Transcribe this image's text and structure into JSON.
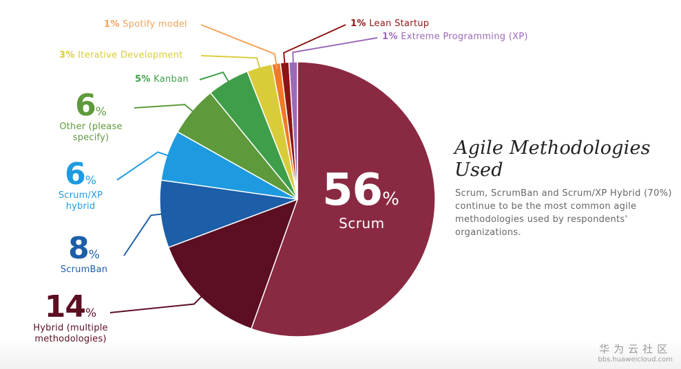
{
  "chart_data": {
    "type": "pie",
    "title": "Agile Methodologies Used",
    "subtitle": "Scrum, ScrumBan and Scrum/XP Hybrid (70%) continue to be the most common agile methodologies used by respondents' organizations.",
    "unit": "%",
    "slices": [
      {
        "label": "Scrum",
        "value": 56,
        "color": "#8a2942"
      },
      {
        "label": "Hybrid (multiple methodologies)",
        "value": 14,
        "color": "#5c0e22"
      },
      {
        "label": "ScrumBan",
        "value": 8,
        "color": "#1c5ea8"
      },
      {
        "label": "Scrum/XP hybrid",
        "value": 6,
        "color": "#1e9be0"
      },
      {
        "label": "Other (please specify)",
        "value": 6,
        "color": "#5e9a3c"
      },
      {
        "label": "Kanban",
        "value": 5,
        "color": "#3f9e4a"
      },
      {
        "label": "Iterative Development",
        "value": 3,
        "color": "#d9cc3a"
      },
      {
        "label": "Spotify model",
        "value": 1,
        "color": "#f07a26"
      },
      {
        "label": "Lean Startup",
        "value": 1,
        "color": "#8e1414"
      },
      {
        "label": "Extreme Programming (XP)",
        "value": 1,
        "color": "#9c6ab8"
      }
    ],
    "labels": {
      "scrum": {
        "value": "56",
        "pct": "%",
        "desc": "Scrum"
      },
      "hybrid": {
        "value": "14",
        "pct": "%",
        "desc1": "Hybrid (multiple",
        "desc2": "methodologies)",
        "color": "#5c0e22"
      },
      "scrumban": {
        "value": "8",
        "pct": "%",
        "desc": "ScrumBan",
        "color": "#1c5ea8"
      },
      "scrumxp": {
        "value": "6",
        "pct": "%",
        "desc1": "Scrum/XP",
        "desc2": "hybrid",
        "color": "#1e9be0"
      },
      "other": {
        "value": "6",
        "pct": "%",
        "desc1": "Other (please",
        "desc2": "specify)",
        "color": "#5e9a3c"
      },
      "kanban": {
        "pct": "5%",
        "name": "Kanban",
        "color": "#3f9e4a"
      },
      "iterative": {
        "pct": "3%",
        "name": "Iterative Development",
        "color": "#d9cc3a"
      },
      "spotify": {
        "pct": "1%",
        "name": "Spotify model",
        "color": "#f5a25a"
      },
      "lean": {
        "pct": "1%",
        "name": "Lean Startup",
        "color": "#8e1414"
      },
      "xp": {
        "pct": "1%",
        "name": "Extreme Programming (XP)",
        "color": "#9c6ab8"
      }
    }
  },
  "watermark": {
    "name": "华为云社区",
    "url": "bbs.huaweicloud.com"
  }
}
